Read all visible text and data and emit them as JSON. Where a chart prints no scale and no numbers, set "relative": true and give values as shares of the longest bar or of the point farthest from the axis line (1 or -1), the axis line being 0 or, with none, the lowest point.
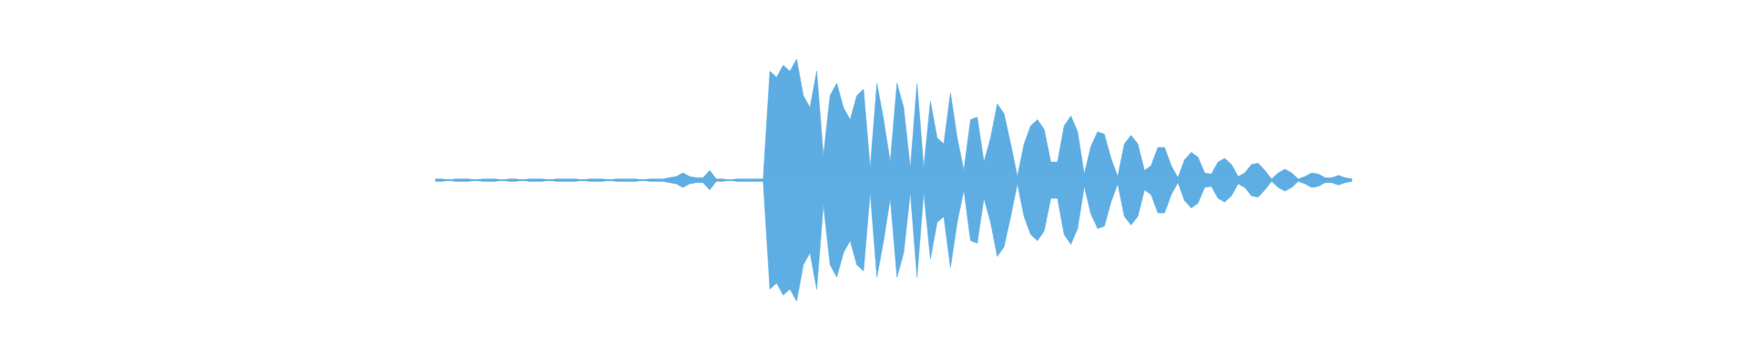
{
  "chart_data": {
    "type": "area",
    "relative": true,
    "categories": [
      null,
      null,
      null,
      null,
      null,
      null,
      null,
      null,
      null,
      null,
      null,
      null,
      null,
      null,
      null,
      null,
      null,
      null,
      null,
      null,
      null,
      null,
      null,
      null,
      null,
      null,
      null,
      null,
      null,
      null,
      null,
      null,
      null,
      null,
      null,
      null,
      null,
      null,
      null,
      null,
      null,
      null,
      null,
      null,
      null,
      null,
      null,
      null,
      null,
      null,
      null,
      null,
      null,
      null,
      null,
      null,
      null,
      null,
      null,
      null,
      null,
      null,
      null,
      null,
      null,
      null,
      null,
      null,
      null,
      null,
      null,
      null,
      null,
      null,
      null,
      null,
      null,
      null,
      null,
      null,
      null,
      null,
      null,
      null,
      null,
      null,
      null,
      null,
      null,
      null,
      null,
      null,
      null,
      null,
      null,
      null,
      null,
      null,
      null,
      null,
      null,
      null,
      null,
      null,
      null,
      null,
      null,
      null,
      null,
      null,
      null,
      null,
      null,
      null,
      null,
      null,
      null,
      null,
      null,
      null,
      null,
      null,
      null,
      null,
      null,
      null,
      null,
      null,
      null,
      null,
      null,
      null,
      null,
      null,
      null,
      null,
      null,
      null
    ],
    "series": [
      {
        "color": "#5dade2",
        "values": [
          0.01,
          0.01,
          0,
          0.01,
          0.01,
          0.01,
          0,
          0.01,
          0.01,
          0.01,
          0,
          0.01,
          0.01,
          0,
          0.01,
          0.01,
          0.01,
          0,
          0.01,
          0.01,
          0.01,
          0.01,
          0,
          0.01,
          0.01,
          0.01,
          0,
          0.01,
          0.01,
          0.01,
          0.01,
          0,
          0.01,
          0.01,
          0.01,
          0.02,
          0.03,
          0.06,
          0.03,
          0.02,
          0.02,
          0.08,
          0.01,
          0.01,
          0,
          0.01,
          0.01,
          0.01,
          0.01,
          0.01,
          0.9,
          0.85,
          0.95,
          0.9,
          1.0,
          0.7,
          0.6,
          0.9,
          0.2,
          0.7,
          0.8,
          0.6,
          0.5,
          0.7,
          0.75,
          0.1,
          0.8,
          0.5,
          0.15,
          0.8,
          0.6,
          0.1,
          0.8,
          0.1,
          0.65,
          0.35,
          0.3,
          0.72,
          0.35,
          0.08,
          0.5,
          0.52,
          0.15,
          0.35,
          0.63,
          0.55,
          0.3,
          0.03,
          0.3,
          0.45,
          0.5,
          0.42,
          0.15,
          0.15,
          0.45,
          0.53,
          0.4,
          0.05,
          0.28,
          0.4,
          0.38,
          0.18,
          0.03,
          0.3,
          0.37,
          0.3,
          0.08,
          0.12,
          0.27,
          0.27,
          0.12,
          0.02,
          0.17,
          0.23,
          0.19,
          0.06,
          0.05,
          0.15,
          0.18,
          0.13,
          0.03,
          0.06,
          0.13,
          0.14,
          0.08,
          0.01,
          0.06,
          0.09,
          0.06,
          0.01,
          0.03,
          0.06,
          0.05,
          0.02,
          0.02,
          0.04,
          0.02,
          0.01
        ]
      },
      {
        "color": "#5eaee3",
        "values": [
          -0.01,
          -0.01,
          0,
          -0.01,
          -0.01,
          -0.01,
          0,
          -0.01,
          -0.01,
          -0.01,
          0,
          -0.01,
          -0.01,
          0,
          -0.01,
          -0.01,
          -0.01,
          0,
          -0.01,
          -0.01,
          -0.01,
          -0.01,
          0,
          -0.01,
          -0.01,
          -0.01,
          0,
          -0.01,
          -0.01,
          -0.01,
          -0.01,
          0,
          -0.01,
          -0.01,
          -0.01,
          -0.02,
          -0.03,
          -0.06,
          -0.03,
          -0.02,
          -0.02,
          -0.08,
          -0.01,
          -0.01,
          0,
          -0.01,
          -0.01,
          -0.01,
          -0.01,
          -0.01,
          -0.9,
          -0.85,
          -0.95,
          -0.9,
          -1.0,
          -0.7,
          -0.6,
          -0.9,
          -0.2,
          -0.7,
          -0.8,
          -0.6,
          -0.5,
          -0.7,
          -0.75,
          -0.1,
          -0.8,
          -0.5,
          -0.15,
          -0.8,
          -0.6,
          -0.1,
          -0.8,
          -0.1,
          -0.65,
          -0.35,
          -0.3,
          -0.72,
          -0.35,
          -0.08,
          -0.5,
          -0.52,
          -0.15,
          -0.35,
          -0.63,
          -0.55,
          -0.3,
          -0.03,
          -0.3,
          -0.45,
          -0.5,
          -0.42,
          -0.15,
          -0.15,
          -0.45,
          -0.53,
          -0.4,
          -0.05,
          -0.28,
          -0.4,
          -0.38,
          -0.18,
          -0.03,
          -0.3,
          -0.37,
          -0.3,
          -0.08,
          -0.12,
          -0.27,
          -0.27,
          -0.12,
          -0.02,
          -0.17,
          -0.23,
          -0.19,
          -0.06,
          -0.05,
          -0.15,
          -0.18,
          -0.13,
          -0.03,
          -0.06,
          -0.13,
          -0.14,
          -0.08,
          -0.01,
          -0.06,
          -0.09,
          -0.06,
          -0.01,
          -0.03,
          -0.06,
          -0.05,
          -0.02,
          -0.02,
          -0.04,
          -0.02,
          -0.01
        ]
      }
    ]
  }
}
